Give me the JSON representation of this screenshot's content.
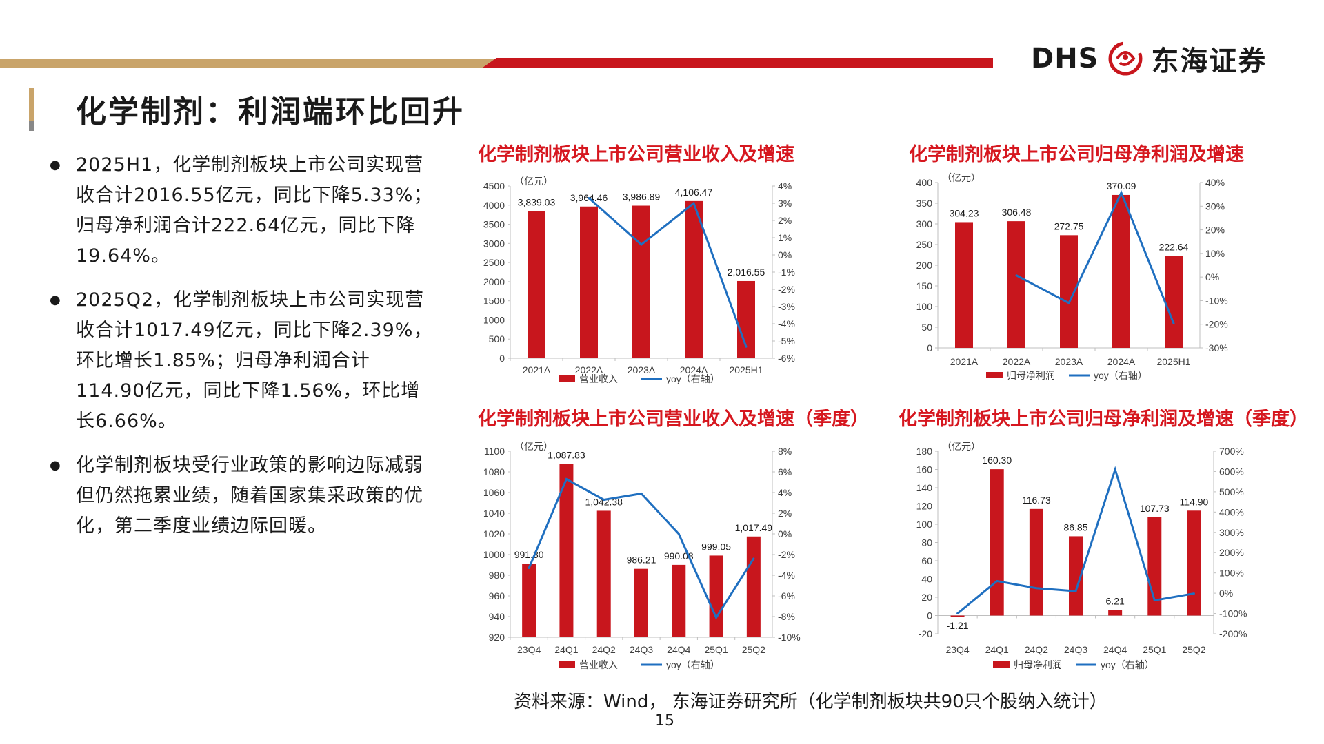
{
  "brand": {
    "latin": "DHS",
    "chinese": "东海证券",
    "accent_red": "#c8161d",
    "accent_gold": "#c9a46a"
  },
  "page": {
    "title": "化学制剂：利润端环比回升",
    "number": "15"
  },
  "bullets": [
    "2025H1，化学制剂板块上市公司实现营收合计2016.55亿元，同比下降5.33%；归母净利润合计222.64亿元，同比下降19.64%。",
    "2025Q2，化学制剂板块上市公司实现营收合计1017.49亿元，同比下降2.39%，环比增长1.85%；归母净利润合计114.90亿元，同比下降1.56%，环比增长6.66%。",
    "化学制剂板块受行业政策的影响边际减弱但仍然拖累业绩，随着国家集采政策的优化，第二季度业绩边际回暖。"
  ],
  "source": "资料来源：Wind， 东海证券研究所（化学制剂板块共90只个股纳入统计）",
  "chart_data": [
    {
      "id": "c1",
      "type": "bar",
      "title": "化学制剂板块上市公司营业收入及增速",
      "unit": "（亿元）",
      "categories": [
        "2021A",
        "2022A",
        "2023A",
        "2024A",
        "2025H1"
      ],
      "series": [
        {
          "name": "营业收入",
          "kind": "bar",
          "axis": "left",
          "values": [
            3839.03,
            3964.46,
            3986.89,
            4106.47,
            2016.55
          ],
          "labels": [
            "3,839.03",
            "3,964.46",
            "3,986.89",
            "4,106.47",
            "2,016.55"
          ]
        },
        {
          "name": "yoy（右轴）",
          "kind": "line",
          "axis": "right",
          "values": [
            null,
            3.3,
            0.6,
            3.0,
            -5.33
          ]
        }
      ],
      "left_axis": {
        "min": 0,
        "max": 4500,
        "ticks": [
          0,
          500,
          1000,
          1500,
          2000,
          2500,
          3000,
          3500,
          4000,
          4500
        ]
      },
      "right_axis": {
        "min": -6,
        "max": 4,
        "ticks": [
          "4%",
          "3%",
          "2%",
          "1%",
          "0%",
          "-1%",
          "-2%",
          "-3%",
          "-4%",
          "-5%",
          "-6%"
        ]
      },
      "legend": "bottom"
    },
    {
      "id": "c2",
      "type": "bar",
      "title": "化学制剂板块上市公司归母净利润及增速",
      "unit": "（亿元）",
      "categories": [
        "2021A",
        "2022A",
        "2023A",
        "2024A",
        "2025H1"
      ],
      "series": [
        {
          "name": "归母净利润",
          "kind": "bar",
          "axis": "left",
          "values": [
            304.23,
            306.48,
            272.75,
            370.09,
            222.64
          ],
          "labels": [
            "304.23",
            "306.48",
            "272.75",
            "370.09",
            "222.64"
          ]
        },
        {
          "name": "yoy（右轴）",
          "kind": "line",
          "axis": "right",
          "values": [
            null,
            0.7,
            -11.0,
            35.7,
            -19.64
          ]
        }
      ],
      "left_axis": {
        "min": 0,
        "max": 400,
        "ticks": [
          0,
          50,
          100,
          150,
          200,
          250,
          300,
          350,
          400
        ]
      },
      "right_axis": {
        "min": -30,
        "max": 40,
        "ticks": [
          "40%",
          "30%",
          "20%",
          "10%",
          "0%",
          "-10%",
          "-20%",
          "-30%"
        ]
      },
      "legend": "bottom"
    },
    {
      "id": "c3",
      "type": "bar",
      "title": "化学制剂板块上市公司营业收入及增速（季度）",
      "unit": "（亿元）",
      "categories": [
        "23Q4",
        "24Q1",
        "24Q2",
        "24Q3",
        "24Q4",
        "25Q1",
        "25Q2"
      ],
      "series": [
        {
          "name": "营业收入",
          "kind": "bar",
          "axis": "left",
          "values": [
            991.3,
            1087.83,
            1042.38,
            986.21,
            990.08,
            999.05,
            1017.49
          ],
          "labels": [
            "991.30",
            "1,087.83",
            "1,042.38",
            "986.21",
            "990.08",
            "999.05",
            "1,017.49"
          ]
        },
        {
          "name": "yoy（右轴）",
          "kind": "line",
          "axis": "right",
          "values": [
            -3.3,
            5.3,
            3.3,
            3.9,
            0.0,
            -8.1,
            -2.39
          ]
        }
      ],
      "left_axis": {
        "min": 920,
        "max": 1100,
        "ticks": [
          920,
          940,
          960,
          980,
          1000,
          1020,
          1040,
          1060,
          1080,
          1100
        ]
      },
      "right_axis": {
        "min": -10,
        "max": 8,
        "ticks": [
          "8%",
          "6%",
          "4%",
          "2%",
          "0%",
          "-2%",
          "-4%",
          "-6%",
          "-8%",
          "-10%"
        ]
      },
      "legend": "bottom"
    },
    {
      "id": "c4",
      "type": "bar",
      "title": "化学制剂板块上市公司归母净利润及增速（季度）",
      "unit": "（亿元）",
      "categories": [
        "23Q4",
        "24Q1",
        "24Q2",
        "24Q3",
        "24Q4",
        "25Q1",
        "25Q2"
      ],
      "series": [
        {
          "name": "归母净利润",
          "kind": "bar",
          "axis": "left",
          "values": [
            -1.21,
            160.3,
            116.73,
            86.85,
            6.21,
            107.73,
            114.9
          ],
          "labels": [
            "-1.21",
            "160.30",
            "116.73",
            "86.85",
            "6.21",
            "107.73",
            "114.90"
          ]
        },
        {
          "name": "yoy（右轴）",
          "kind": "line",
          "axis": "right",
          "values": [
            -100,
            60,
            25,
            10,
            610,
            -35,
            -1.56
          ]
        }
      ],
      "left_axis": {
        "min": -20,
        "max": 180,
        "ticks": [
          -20,
          0,
          20,
          40,
          60,
          80,
          100,
          120,
          140,
          160,
          180
        ]
      },
      "right_axis": {
        "min": -200,
        "max": 700,
        "ticks": [
          "700%",
          "600%",
          "500%",
          "400%",
          "300%",
          "200%",
          "100%",
          "0%",
          "-100%",
          "-200%"
        ]
      },
      "legend": "bottom"
    }
  ]
}
